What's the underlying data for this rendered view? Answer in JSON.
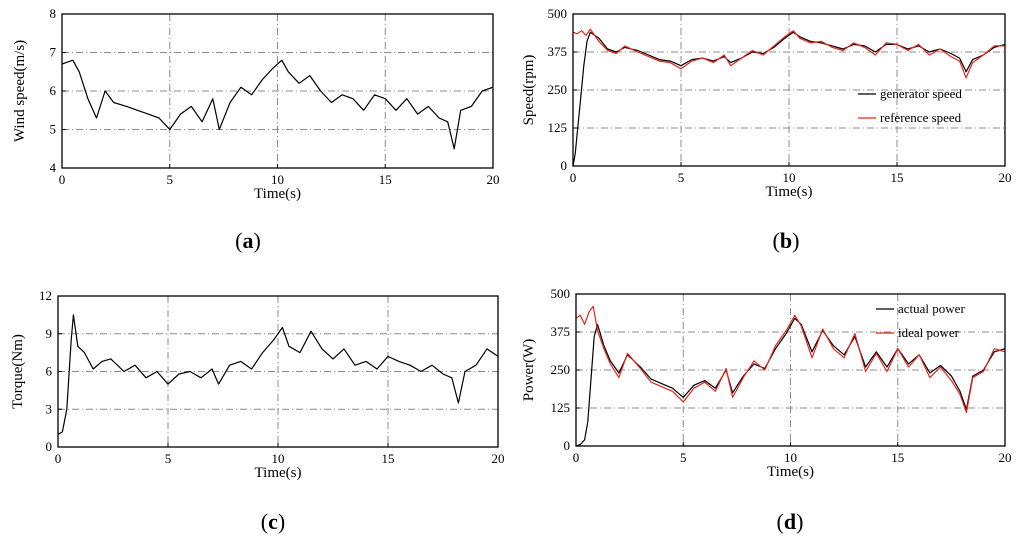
{
  "chart_data": [
    {
      "id": "a",
      "type": "line",
      "panel_label_open": "(",
      "panel_label_letter": "a",
      "panel_label_close": ")",
      "xlabel": "Time(s)",
      "ylabel": "Wind speed(m/s)",
      "xlim": [
        0,
        20
      ],
      "ylim": [
        4,
        8
      ],
      "xticks": [
        "0",
        "5",
        "10",
        "15",
        "20"
      ],
      "yticks": [
        "4",
        "5",
        "6",
        "7",
        "8"
      ],
      "legend": [],
      "series": [
        {
          "name": "wind speed",
          "color": "#000000",
          "x": [
            0,
            0.5,
            0.8,
            1.2,
            1.6,
            2,
            2.4,
            3,
            3.5,
            4,
            4.5,
            5,
            5.5,
            6,
            6.5,
            7,
            7.3,
            7.8,
            8.3,
            8.8,
            9.3,
            9.8,
            10.2,
            10.5,
            11,
            11.5,
            12,
            12.5,
            13,
            13.5,
            14,
            14.5,
            15,
            15.5,
            16,
            16.5,
            17,
            17.5,
            17.9,
            18.2,
            18.5,
            19,
            19.5,
            20
          ],
          "y": [
            6.7,
            6.8,
            6.5,
            5.8,
            5.3,
            6.0,
            5.7,
            5.6,
            5.5,
            5.4,
            5.3,
            5.0,
            5.4,
            5.6,
            5.2,
            5.8,
            5.0,
            5.7,
            6.1,
            5.9,
            6.3,
            6.6,
            6.8,
            6.5,
            6.2,
            6.4,
            6.0,
            5.7,
            5.9,
            5.8,
            5.5,
            5.9,
            5.8,
            5.5,
            5.8,
            5.4,
            5.6,
            5.3,
            5.2,
            4.5,
            5.5,
            5.6,
            6.0,
            6.1
          ]
        }
      ]
    },
    {
      "id": "b",
      "type": "line",
      "panel_label_open": "(",
      "panel_label_letter": "b",
      "panel_label_close": ")",
      "xlabel": "Time(s)",
      "ylabel": "Speed(rpm)",
      "xlim": [
        0,
        20
      ],
      "ylim": [
        0,
        500
      ],
      "xticks": [
        "0",
        "5",
        "10",
        "15",
        "20"
      ],
      "yticks": [
        "0",
        "125",
        "250",
        "375",
        "500"
      ],
      "legend": [
        "generator speed",
        "reference speed"
      ],
      "series": [
        {
          "name": "generator speed",
          "color": "#000000",
          "x": [
            0,
            0.1,
            0.2,
            0.35,
            0.5,
            0.65,
            0.8,
            1.2,
            1.6,
            2,
            2.4,
            3,
            3.5,
            4,
            4.5,
            5,
            5.5,
            6,
            6.5,
            7,
            7.3,
            7.8,
            8.3,
            8.8,
            9.3,
            9.8,
            10.2,
            10.5,
            11,
            11.5,
            12,
            12.5,
            13,
            13.5,
            14,
            14.5,
            15,
            15.5,
            16,
            16.5,
            17,
            17.5,
            17.9,
            18.2,
            18.5,
            19,
            19.5,
            20
          ],
          "y": [
            0,
            40,
            110,
            220,
            330,
            410,
            440,
            420,
            385,
            375,
            390,
            380,
            365,
            350,
            345,
            330,
            350,
            355,
            345,
            360,
            340,
            355,
            375,
            370,
            390,
            420,
            440,
            425,
            410,
            405,
            395,
            385,
            400,
            395,
            375,
            400,
            400,
            385,
            395,
            375,
            385,
            370,
            355,
            310,
            350,
            365,
            390,
            400
          ]
        },
        {
          "name": "reference speed",
          "color": "#e8251f",
          "x": [
            0,
            0.2,
            0.4,
            0.6,
            0.8,
            1.2,
            1.6,
            2,
            2.4,
            3,
            3.5,
            4,
            4.5,
            5,
            5.5,
            6,
            6.5,
            7,
            7.3,
            7.8,
            8.3,
            8.8,
            9.3,
            9.8,
            10.2,
            10.5,
            11,
            11.5,
            12,
            12.5,
            13,
            13.5,
            14,
            14.5,
            15,
            15.5,
            16,
            16.5,
            17,
            17.5,
            17.9,
            18.2,
            18.5,
            19,
            19.5,
            20
          ],
          "y": [
            440,
            435,
            445,
            430,
            450,
            410,
            380,
            370,
            395,
            375,
            360,
            345,
            340,
            320,
            345,
            355,
            340,
            365,
            330,
            355,
            380,
            365,
            395,
            425,
            445,
            420,
            405,
            410,
            390,
            380,
            405,
            390,
            365,
            405,
            400,
            380,
            400,
            365,
            385,
            360,
            345,
            290,
            340,
            365,
            395,
            395
          ]
        }
      ]
    },
    {
      "id": "c",
      "type": "line",
      "panel_label_open": "(",
      "panel_label_letter": "c",
      "panel_label_close": ")",
      "xlabel": "Time(s)",
      "ylabel": "Torque(Nm)",
      "xlim": [
        0,
        20
      ],
      "ylim": [
        0,
        12
      ],
      "xticks": [
        "0",
        "5",
        "10",
        "15",
        "20"
      ],
      "yticks": [
        "0",
        "3",
        "6",
        "9",
        "12"
      ],
      "legend": [],
      "series": [
        {
          "name": "torque",
          "color": "#000000",
          "x": [
            0,
            0.2,
            0.4,
            0.6,
            0.7,
            0.9,
            1.2,
            1.6,
            2,
            2.4,
            3,
            3.5,
            4,
            4.5,
            5,
            5.5,
            6,
            6.5,
            7,
            7.3,
            7.8,
            8.3,
            8.8,
            9.3,
            9.8,
            10.2,
            10.5,
            11,
            11.5,
            12,
            12.5,
            13,
            13.5,
            14,
            14.5,
            15,
            15.5,
            16,
            16.5,
            17,
            17.5,
            17.9,
            18.2,
            18.5,
            19,
            19.5,
            20
          ],
          "y": [
            1.0,
            1.2,
            3.0,
            8.5,
            10.5,
            8.0,
            7.5,
            6.2,
            6.8,
            7.0,
            6.0,
            6.5,
            5.5,
            6.0,
            5.0,
            5.8,
            6.0,
            5.5,
            6.2,
            5.0,
            6.5,
            6.8,
            6.2,
            7.5,
            8.5,
            9.5,
            8.0,
            7.5,
            9.2,
            7.8,
            7.0,
            7.8,
            6.5,
            6.8,
            6.2,
            7.2,
            6.8,
            6.5,
            6.0,
            6.5,
            5.8,
            5.5,
            3.5,
            6.0,
            6.5,
            7.8,
            7.2
          ]
        }
      ]
    },
    {
      "id": "d",
      "type": "line",
      "panel_label_open": "(",
      "panel_label_letter": "d",
      "panel_label_close": ")",
      "xlabel": "Time(s)",
      "ylabel": "Power(W)",
      "xlim": [
        0,
        20
      ],
      "ylim": [
        0,
        500
      ],
      "xticks": [
        "0",
        "5",
        "10",
        "15",
        "20"
      ],
      "yticks": [
        "0",
        "125",
        "250",
        "375",
        "500"
      ],
      "legend": [
        "actual power",
        "ideal power"
      ],
      "series": [
        {
          "name": "actual power",
          "color": "#000000",
          "x": [
            0,
            0.2,
            0.4,
            0.55,
            0.7,
            0.85,
            1.0,
            1.3,
            1.6,
            2,
            2.4,
            3,
            3.5,
            4,
            4.5,
            5,
            5.5,
            6,
            6.5,
            7,
            7.3,
            7.8,
            8.3,
            8.8,
            9.3,
            9.8,
            10.2,
            10.5,
            11,
            11.5,
            12,
            12.5,
            13,
            13.5,
            14,
            14.5,
            15,
            15.5,
            16,
            16.5,
            17,
            17.5,
            17.9,
            18.2,
            18.5,
            19,
            19.5,
            20
          ],
          "y": [
            0,
            5,
            20,
            80,
            220,
            360,
            400,
            330,
            280,
            240,
            300,
            260,
            220,
            205,
            190,
            160,
            200,
            215,
            190,
            250,
            175,
            230,
            270,
            255,
            320,
            370,
            420,
            400,
            310,
            380,
            330,
            300,
            360,
            260,
            310,
            260,
            320,
            270,
            300,
            240,
            265,
            230,
            180,
            120,
            230,
            250,
            310,
            320
          ]
        },
        {
          "name": "ideal power",
          "color": "#e8251f",
          "x": [
            0,
            0.2,
            0.4,
            0.6,
            0.8,
            1.0,
            1.3,
            1.6,
            2,
            2.4,
            3,
            3.5,
            4,
            4.5,
            5,
            5.5,
            6,
            6.5,
            7,
            7.3,
            7.8,
            8.3,
            8.8,
            9.3,
            9.8,
            10.2,
            10.5,
            11,
            11.5,
            12,
            12.5,
            13,
            13.5,
            14,
            14.5,
            15,
            15.5,
            16,
            16.5,
            17,
            17.5,
            17.9,
            18.2,
            18.5,
            19,
            19.5,
            20
          ],
          "y": [
            420,
            430,
            400,
            440,
            460,
            380,
            320,
            270,
            225,
            305,
            255,
            210,
            195,
            180,
            145,
            190,
            210,
            180,
            255,
            160,
            225,
            280,
            250,
            330,
            380,
            430,
            395,
            290,
            385,
            320,
            290,
            370,
            245,
            305,
            245,
            320,
            260,
            300,
            225,
            260,
            215,
            170,
            110,
            225,
            245,
            320,
            310
          ]
        }
      ]
    }
  ]
}
